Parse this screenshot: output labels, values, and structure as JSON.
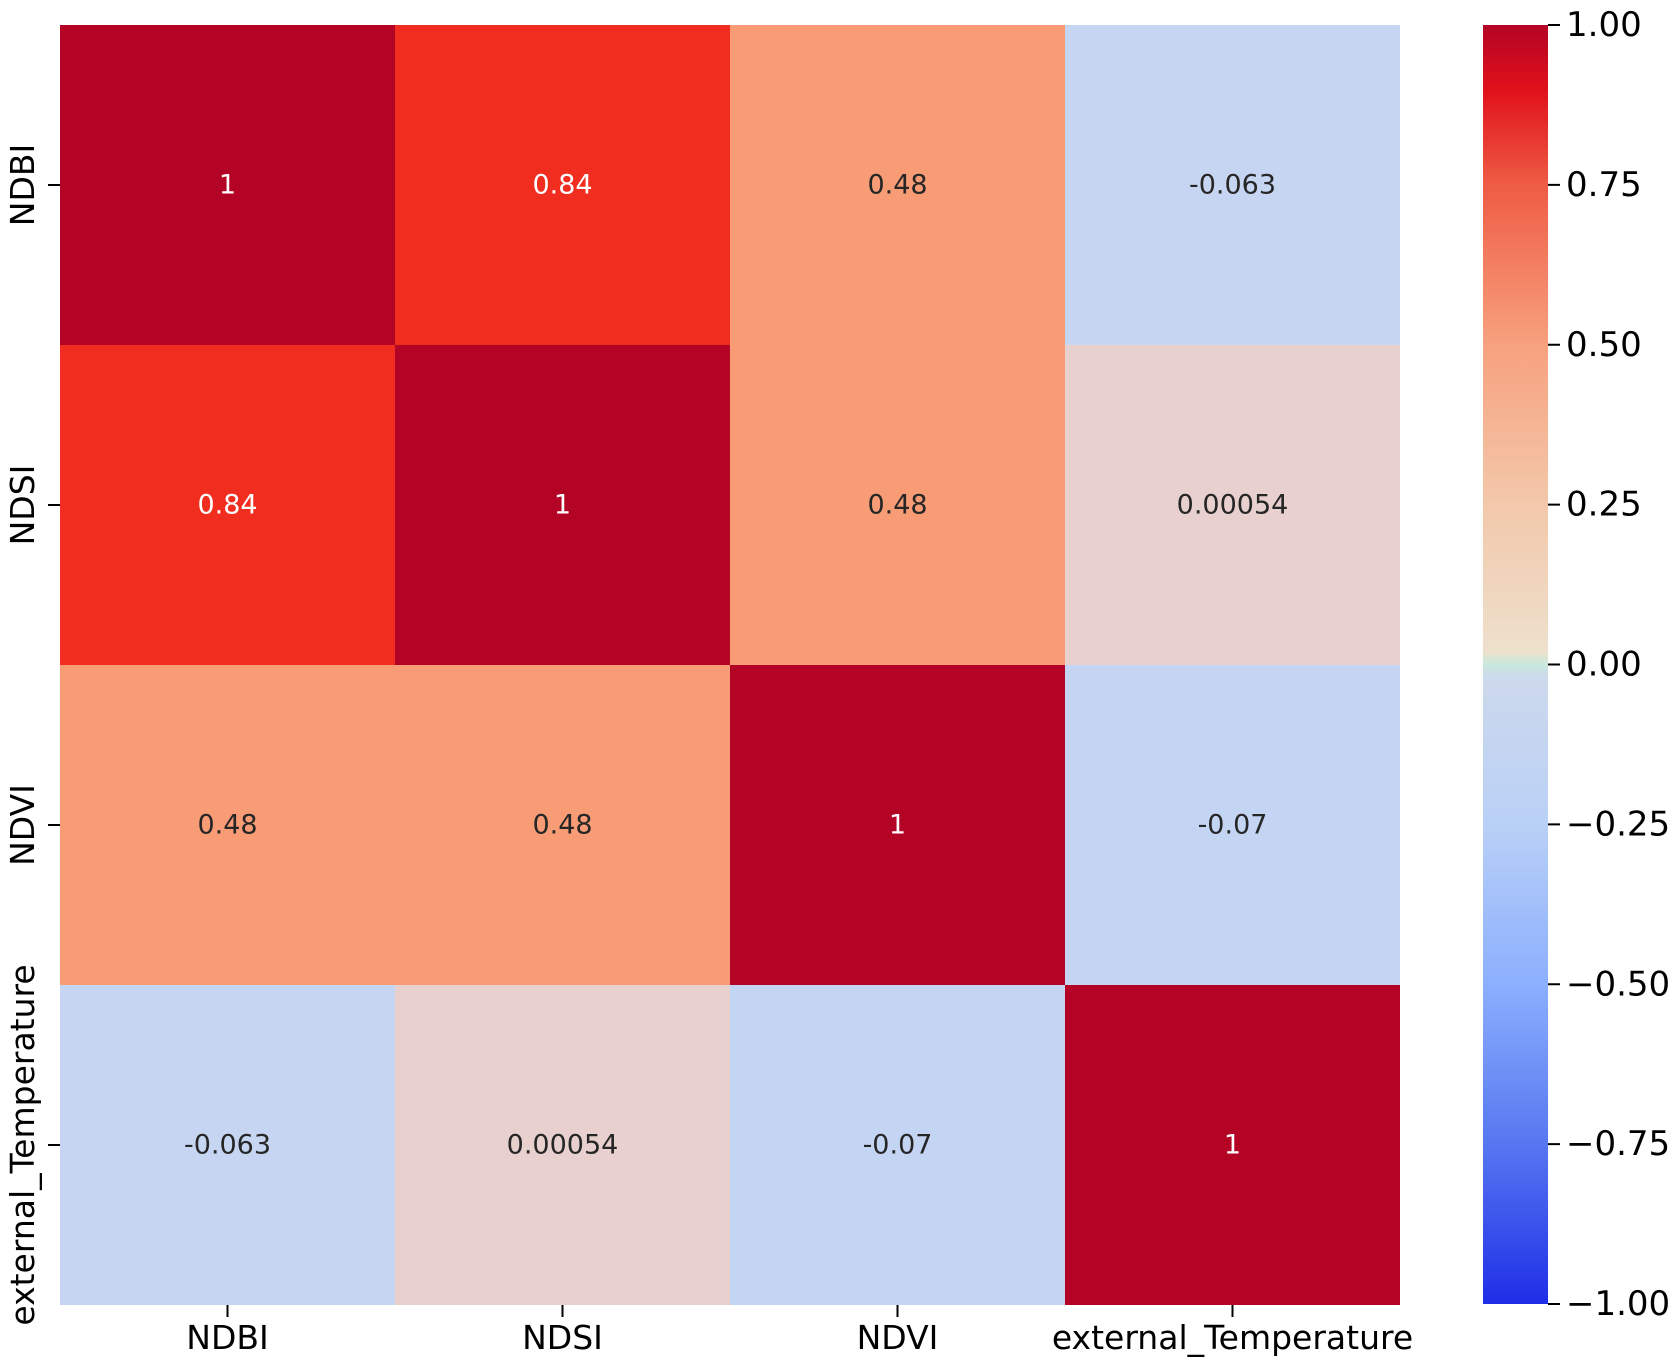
{
  "chart_data": {
    "type": "heatmap",
    "title": "",
    "xlabel": "",
    "ylabel": "",
    "x_categories": [
      "NDBI",
      "NDSI",
      "NDVI",
      "external_Temperature"
    ],
    "y_categories": [
      "NDBI",
      "NDSI",
      "NDVI",
      "external_Temperature"
    ],
    "matrix": [
      [
        1,
        0.84,
        0.48,
        -0.063
      ],
      [
        0.84,
        1,
        0.48,
        0.00054
      ],
      [
        0.48,
        0.48,
        1,
        -0.07
      ],
      [
        -0.063,
        0.00054,
        -0.07,
        1
      ]
    ],
    "annotations": [
      [
        "1",
        "0.84",
        "0.48",
        "-0.063"
      ],
      [
        "0.84",
        "1",
        "0.48",
        "0.00054"
      ],
      [
        "0.48",
        "0.48",
        "1",
        "-0.07"
      ],
      [
        "-0.063",
        "0.00054",
        "-0.07",
        "1"
      ]
    ],
    "colormap": "coolwarm",
    "vmin": -1,
    "vmax": 1,
    "colorbar_ticks": [
      1.0,
      0.75,
      0.5,
      0.25,
      0.0,
      -0.25,
      -0.5,
      -0.75,
      -1.0
    ],
    "colorbar_tick_labels": [
      "1.00",
      "0.75",
      "0.50",
      "0.25",
      "0.00",
      "−0.25",
      "−0.50",
      "−0.75",
      "−1.00"
    ],
    "cell_colors": [
      [
        "#b40426",
        "#f02d1e",
        "#f89c76",
        "#c6d6f2"
      ],
      [
        "#f02d1e",
        "#b40426",
        "#f89c76",
        "#e8d0cf"
      ],
      [
        "#f89c76",
        "#f89c76",
        "#b40426",
        "#c4d5f3"
      ],
      [
        "#c6d6f2",
        "#e8d0cf",
        "#c4d5f3",
        "#b40426"
      ]
    ],
    "colorbar_stops": [
      {
        "value": 1.0,
        "color": "#b40426"
      },
      {
        "value": 0.9,
        "color": "#e0101a"
      },
      {
        "value": 0.75,
        "color": "#ee5c44"
      },
      {
        "value": 0.5,
        "color": "#f7a17e"
      },
      {
        "value": 0.25,
        "color": "#f3c8ab"
      },
      {
        "value": 0.02,
        "color": "#ede0cc"
      },
      {
        "value": 0.0,
        "color": "#c8e8dc"
      },
      {
        "value": -0.02,
        "color": "#cdd9ec"
      },
      {
        "value": -0.25,
        "color": "#b9d0f6"
      },
      {
        "value": -0.5,
        "color": "#8caffe"
      },
      {
        "value": -0.75,
        "color": "#5677f0"
      },
      {
        "value": -1.0,
        "color": "#1f2ee8"
      }
    ]
  }
}
